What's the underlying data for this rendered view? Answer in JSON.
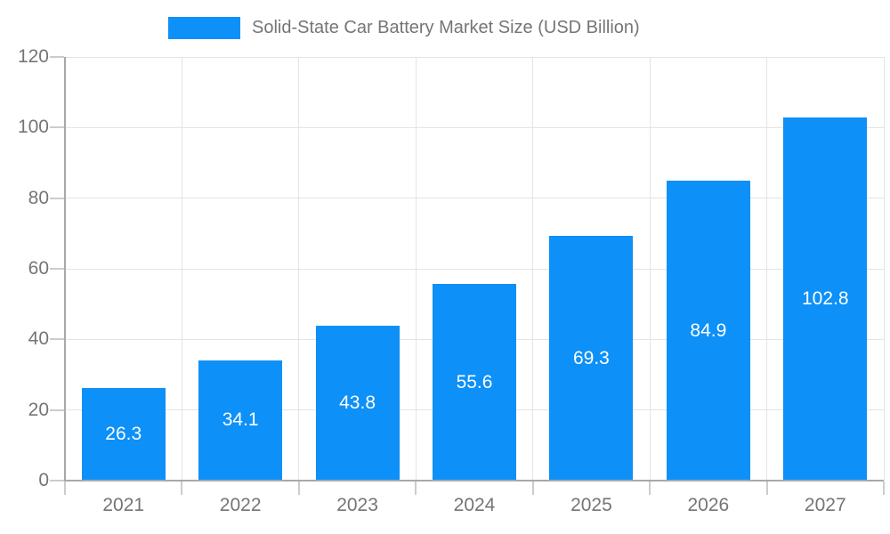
{
  "chart_data": {
    "type": "bar",
    "title": "Solid-State Car Battery Market Size (USD Billion)",
    "categories": [
      "2021",
      "2022",
      "2023",
      "2024",
      "2025",
      "2026",
      "2027"
    ],
    "values": [
      26.3,
      34.1,
      43.8,
      55.6,
      69.3,
      84.9,
      102.8
    ],
    "xlabel": "",
    "ylabel": "",
    "ylim": [
      0,
      120
    ],
    "yticks": [
      0,
      20,
      40,
      60,
      80,
      100,
      120
    ],
    "grid": true,
    "legend_position": "top",
    "colors": {
      "bar": "#0d90f8",
      "bar_label_text": "#ffffff",
      "axis_text": "#757575",
      "gridline": "#e4e4e4",
      "tick": "#cccccc",
      "axis_line": "#a8a8a8",
      "background": "#ffffff"
    }
  }
}
